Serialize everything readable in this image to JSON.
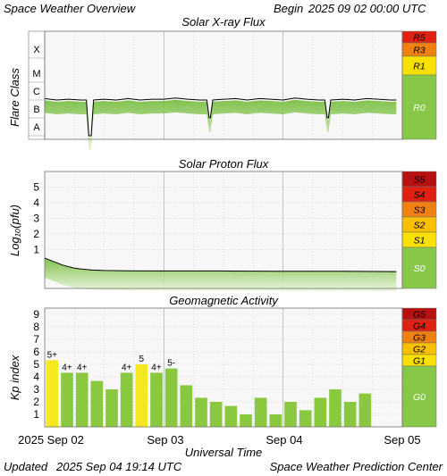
{
  "header": {
    "left_title": "Space Weather Overview",
    "begin_label": "Begin",
    "begin_time": "2025 09 02 00:00 UTC"
  },
  "footer": {
    "updated_label": "Updated",
    "updated_time": "2025 Sep 04 19:14 UTC",
    "center": "Space Weather Prediction Center"
  },
  "x_axis": {
    "title": "Universal Time",
    "ticks": [
      "2025 Sep 02",
      "Sep 03",
      "Sep 04",
      "Sep 05"
    ],
    "range_days": [
      0,
      3
    ]
  },
  "colors": {
    "plot_bg": "#f7f7f7",
    "grid": "#d0d0d0",
    "green_fill": "#8ac840",
    "green_light": "#c8e8a8",
    "yellow": "#f5e820",
    "green_band": "#88c848",
    "yellow_band": "#f8e000",
    "orange_band": "#f08010",
    "red_band": "#e02010",
    "red_dark": "#b81010"
  },
  "chart_data": [
    {
      "type": "line",
      "title": "Solar X-ray Flux",
      "ylabel": "Flare Class",
      "y_categories": [
        "X",
        "M",
        "C",
        "B",
        "A"
      ],
      "scale": "log",
      "series": [
        {
          "x_days": [
            0.0,
            0.1,
            0.2,
            0.3,
            0.35,
            0.37,
            0.39,
            0.41,
            0.5,
            0.6,
            0.7,
            0.8,
            0.9,
            1.0,
            1.1,
            1.2,
            1.3,
            1.36,
            1.38,
            1.39,
            1.41,
            1.5,
            1.6,
            1.7,
            1.8,
            1.9,
            2.0,
            2.1,
            2.2,
            2.3,
            2.35,
            2.37,
            2.38,
            2.4,
            2.5,
            2.6,
            2.7,
            2.8,
            2.9,
            2.95
          ],
          "values_class": [
            "C1.2",
            "C1.0",
            "C1.1",
            "C1.0",
            "C1.0",
            "A1.0",
            "A1.0",
            "C1.0",
            "C1.1",
            "C1.0",
            "C1.2",
            "C1.0",
            "C1.1",
            "C1.1",
            "C1.3",
            "C1.1",
            "C1.0",
            "C1.0",
            "B1.0",
            "B1.0",
            "C1.0",
            "C1.1",
            "C1.2",
            "C1.0",
            "C1.2",
            "C1.1",
            "C1.0",
            "C1.3",
            "C1.1",
            "C1.0",
            "C1.0",
            "B1.0",
            "B1.0",
            "C1.0",
            "C1.1",
            "C1.0",
            "C1.2",
            "C1.1",
            "C1.0",
            "C1.0"
          ]
        }
      ],
      "scale_bands": [
        {
          "label": "R5",
          "color": "#e02010"
        },
        {
          "label": "R3",
          "color": "#f08010"
        },
        {
          "label": "R1",
          "color": "#f8e000"
        },
        {
          "label": "R0",
          "color": "#88c848"
        }
      ]
    },
    {
      "type": "line",
      "title": "Solar Proton Flux",
      "ylabel": "Log₁₀(pfu)",
      "yticks": [
        "5",
        "4",
        "3",
        "2",
        "1"
      ],
      "ylim": [
        -1.5,
        6
      ],
      "series": [
        {
          "x_days": [
            0.0,
            0.05,
            0.1,
            0.15,
            0.2,
            0.25,
            0.3,
            0.4,
            0.5,
            0.7,
            1.0,
            1.5,
            2.0,
            2.5,
            2.95
          ],
          "values_log": [
            0.45,
            0.3,
            0.15,
            0.0,
            -0.1,
            -0.2,
            -0.25,
            -0.32,
            -0.35,
            -0.37,
            -0.38,
            -0.38,
            -0.4,
            -0.4,
            -0.42
          ]
        }
      ],
      "scale_bands": [
        {
          "label": "S5",
          "color": "#b81010"
        },
        {
          "label": "S4",
          "color": "#e02010"
        },
        {
          "label": "S3",
          "color": "#f08010"
        },
        {
          "label": "S2",
          "color": "#f8c000"
        },
        {
          "label": "S1",
          "color": "#f8e000"
        },
        {
          "label": "S0",
          "color": "#88c848"
        }
      ]
    },
    {
      "type": "bar",
      "title": "Geomagnetic Activity",
      "ylabel": "Kp index",
      "yticks": [
        "9",
        "8",
        "7",
        "6",
        "5",
        "4",
        "3",
        "2",
        "1"
      ],
      "ylim": [
        0,
        9.5
      ],
      "bar_width_hours": 3,
      "values": [
        5.33,
        4.33,
        4.33,
        3.67,
        3.0,
        4.33,
        5.0,
        4.33,
        4.67,
        3.33,
        2.33,
        2.0,
        1.67,
        1.0,
        2.33,
        1.0,
        2.0,
        1.33,
        2.33,
        3.0,
        2.0,
        2.67
      ],
      "bar_labels": [
        "5+",
        "4+",
        "4+",
        "",
        "",
        "4+",
        "5",
        "4+",
        "5-",
        "",
        "",
        "",
        "",
        "",
        "",
        "",
        "",
        "",
        "",
        "",
        "",
        ""
      ],
      "scale_bands": [
        {
          "label": "G5",
          "color": "#b81010"
        },
        {
          "label": "G4",
          "color": "#e02010"
        },
        {
          "label": "G3",
          "color": "#f08010"
        },
        {
          "label": "G2",
          "color": "#f8c000"
        },
        {
          "label": "G1",
          "color": "#f8e000"
        },
        {
          "label": "G0",
          "color": "#88c848"
        }
      ]
    }
  ]
}
